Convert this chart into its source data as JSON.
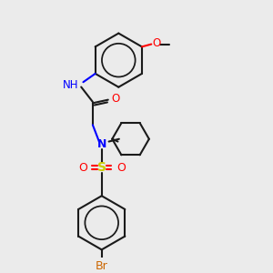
{
  "bg_color": "#ebebeb",
  "bond_color": "#1a1a1a",
  "N_color": "#0000ff",
  "O_color": "#ff0000",
  "S_color": "#cccc00",
  "Br_color": "#cc6600",
  "lw": 1.5,
  "figsize": [
    3.0,
    3.0
  ],
  "dpi": 100,
  "xlim": [
    0,
    10
  ],
  "ylim": [
    0,
    10
  ]
}
